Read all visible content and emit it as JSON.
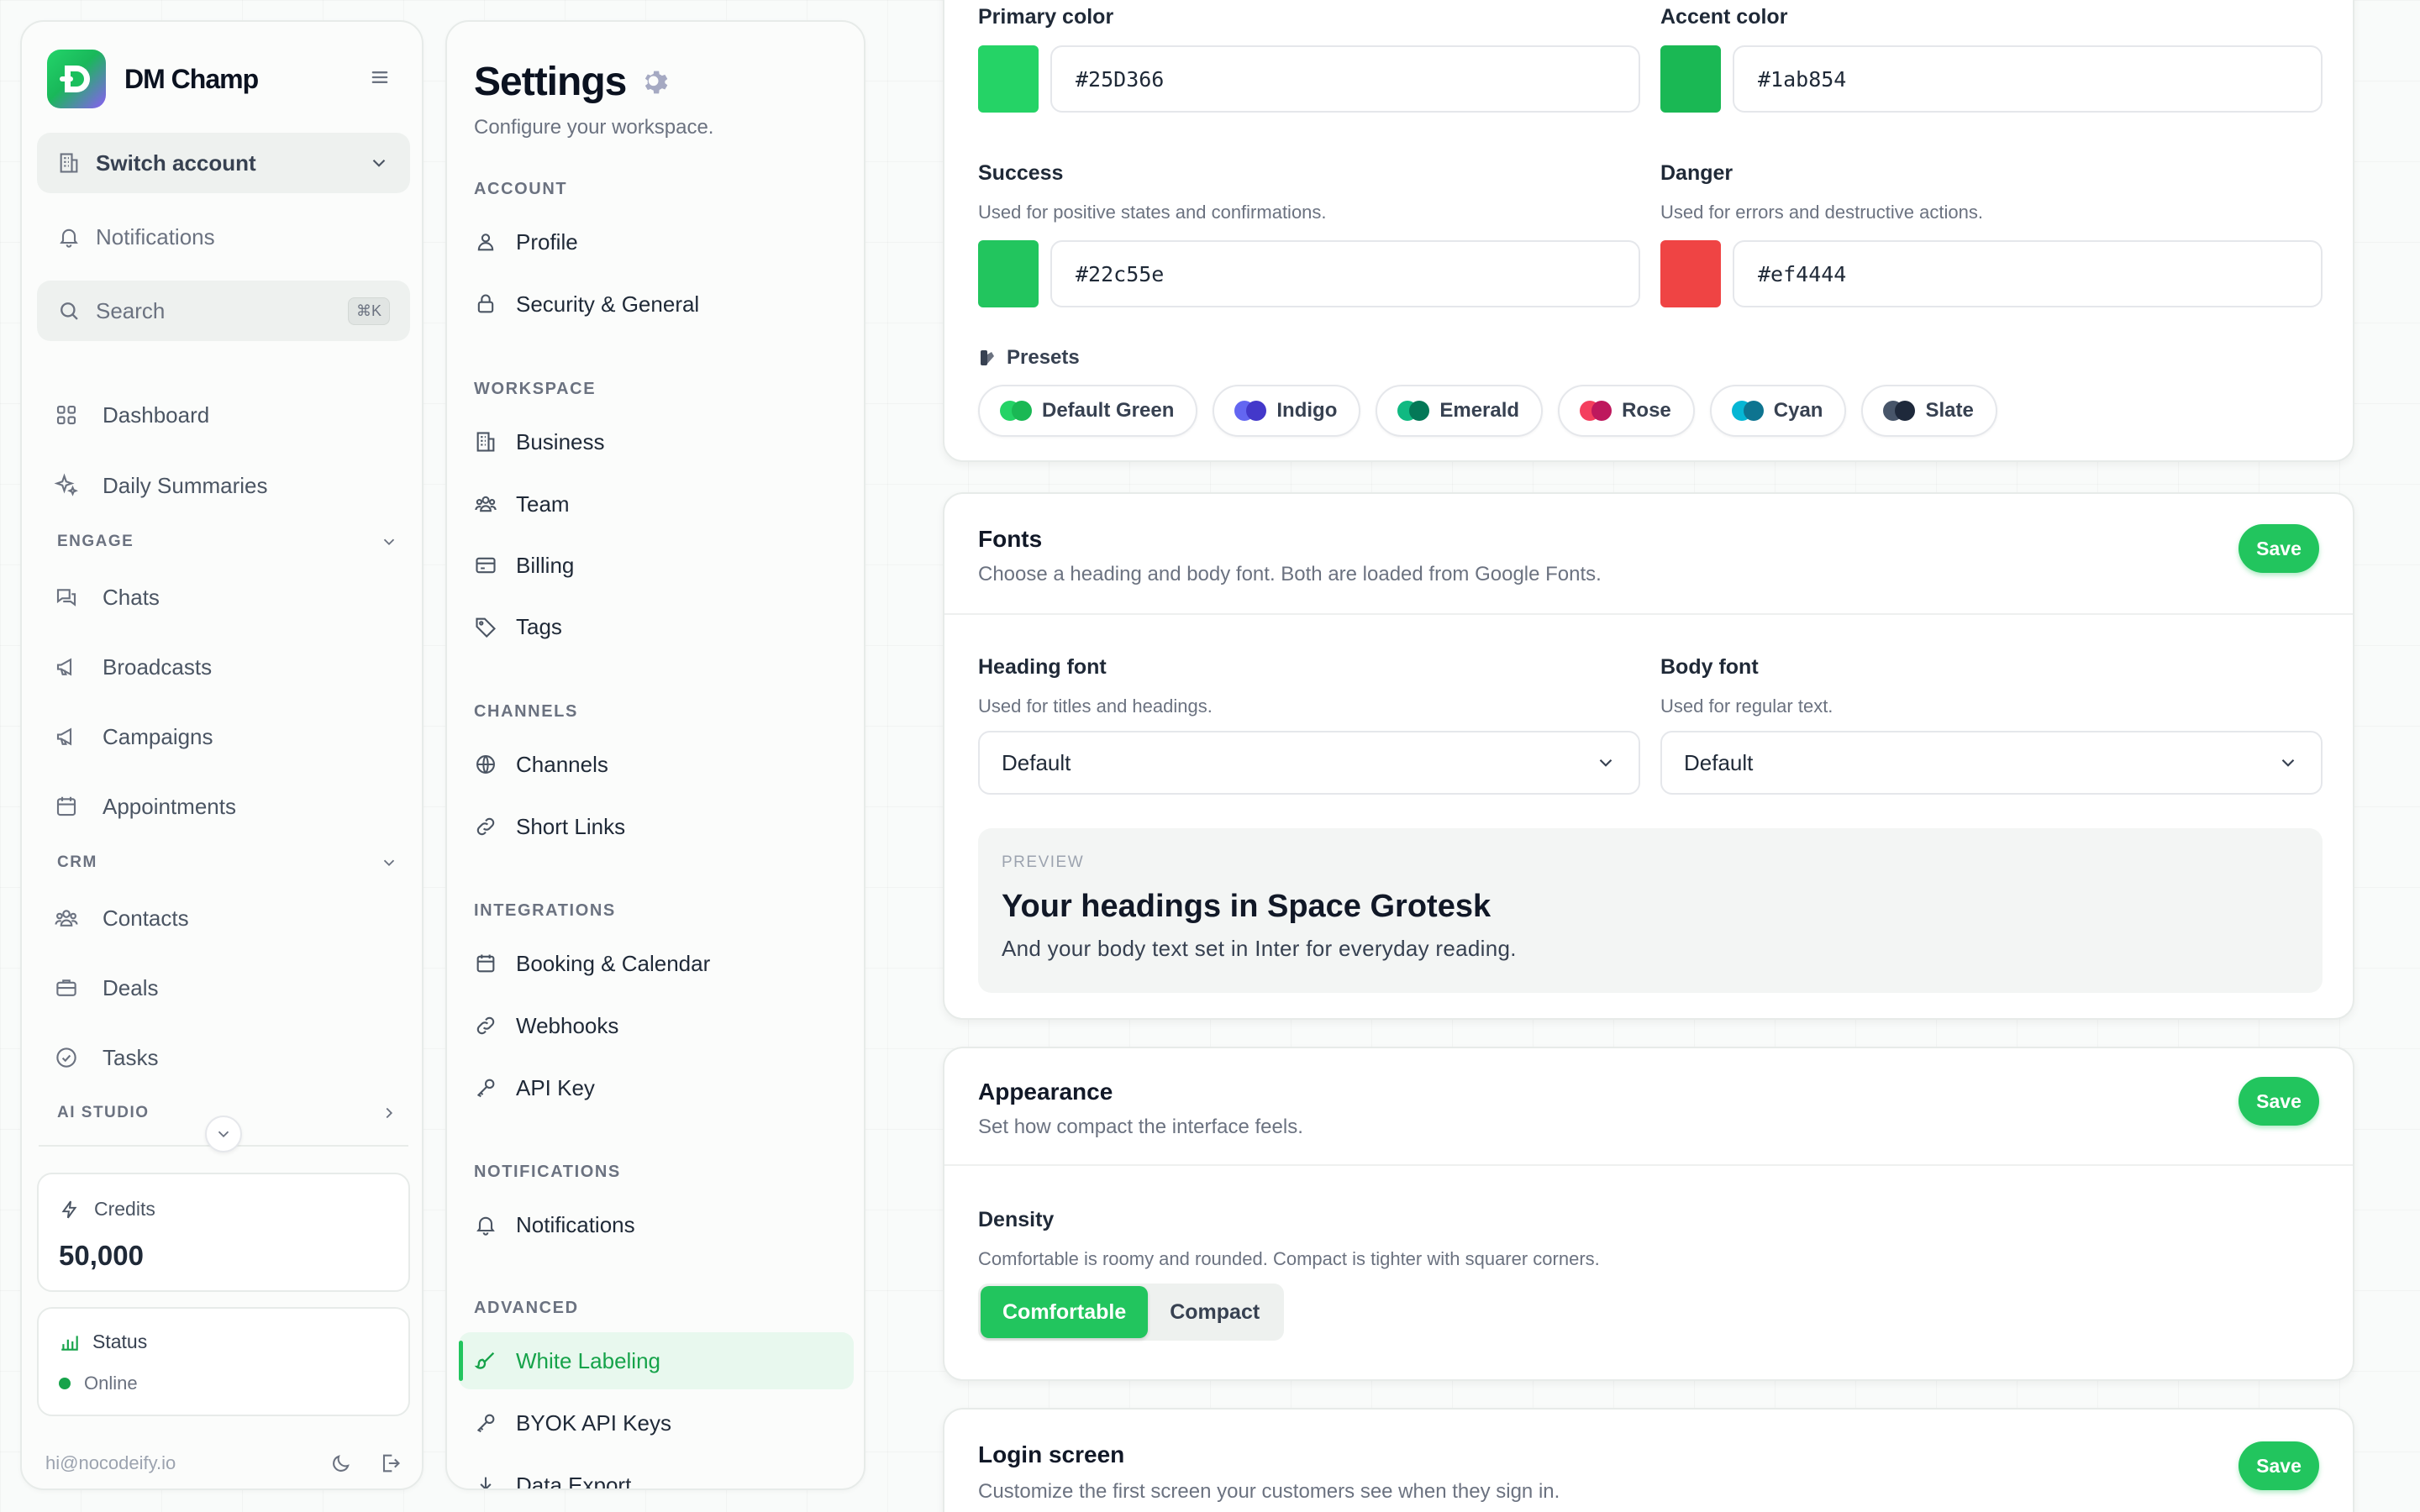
{
  "sidebar": {
    "brand": "DM Champ",
    "switch_account": "Switch account",
    "notifications": "Notifications",
    "search_placeholder": "Search",
    "search_shortcut": "⌘K",
    "nav": [
      {
        "label": "Dashboard",
        "icon": "dashboard-grid-icon"
      },
      {
        "label": "Daily Summaries",
        "icon": "sparkles-icon"
      }
    ],
    "sections": [
      {
        "label": "ENGAGE",
        "items": [
          {
            "label": "Chats",
            "icon": "chat-icon"
          },
          {
            "label": "Broadcasts",
            "icon": "megaphone-icon"
          },
          {
            "label": "Campaigns",
            "icon": "megaphone-icon"
          },
          {
            "label": "Appointments",
            "icon": "calendar-icon"
          }
        ]
      },
      {
        "label": "CRM",
        "items": [
          {
            "label": "Contacts",
            "icon": "users-icon"
          },
          {
            "label": "Deals",
            "icon": "briefcase-icon"
          },
          {
            "label": "Tasks",
            "icon": "check-circle-icon"
          }
        ]
      },
      {
        "label": "AI STUDIO",
        "items": []
      }
    ],
    "credits": {
      "label": "Credits",
      "value": "50,000"
    },
    "status": {
      "label": "Status",
      "value": "Online",
      "color": "#16a34a"
    },
    "user_email": "hi@nocodeify.io"
  },
  "settings_nav": {
    "title": "Settings",
    "subtitle": "Configure your workspace.",
    "groups": [
      {
        "label": "ACCOUNT",
        "items": [
          "Profile",
          "Security & General"
        ]
      },
      {
        "label": "WORKSPACE",
        "items": [
          "Business",
          "Team",
          "Billing",
          "Tags"
        ]
      },
      {
        "label": "CHANNELS",
        "items": [
          "Channels",
          "Short Links"
        ]
      },
      {
        "label": "INTEGRATIONS",
        "items": [
          "Booking & Calendar",
          "Webhooks",
          "API Key"
        ]
      },
      {
        "label": "NOTIFICATIONS",
        "items": [
          "Notifications"
        ]
      },
      {
        "label": "ADVANCED",
        "items": [
          "White Labeling",
          "BYOK API Keys",
          "Data Export"
        ]
      }
    ],
    "active_item": "White Labeling"
  },
  "colors": {
    "primary": {
      "label": "Primary color",
      "value": "#25D366",
      "swatch": "#25D366"
    },
    "accent": {
      "label": "Accent color",
      "value": "#1ab854",
      "swatch": "#1ab854"
    },
    "success": {
      "label": "Success",
      "help": "Used for positive states and confirmations.",
      "value": "#22c55e",
      "swatch": "#22c55e"
    },
    "danger": {
      "label": "Danger",
      "help": "Used for errors and destructive actions.",
      "value": "#ef4444",
      "swatch": "#ef4444"
    },
    "presets_label": "Presets",
    "presets": [
      {
        "name": "Default Green",
        "c1": "#25D366",
        "c2": "#1ab854"
      },
      {
        "name": "Indigo",
        "c1": "#6366f1",
        "c2": "#4338ca"
      },
      {
        "name": "Emerald",
        "c1": "#10b981",
        "c2": "#047857"
      },
      {
        "name": "Rose",
        "c1": "#f43f5e",
        "c2": "#be185d"
      },
      {
        "name": "Cyan",
        "c1": "#06b6d4",
        "c2": "#0e7490"
      },
      {
        "name": "Slate",
        "c1": "#475569",
        "c2": "#1e293b"
      }
    ]
  },
  "fonts": {
    "title": "Fonts",
    "subtitle": "Choose a heading and body font. Both are loaded from Google Fonts.",
    "save": "Save",
    "heading": {
      "label": "Heading font",
      "help": "Used for titles and headings.",
      "value": "Default"
    },
    "body": {
      "label": "Body font",
      "help": "Used for regular text.",
      "value": "Default"
    },
    "preview": {
      "label": "PREVIEW",
      "heading": "Your headings in Space Grotesk",
      "body": "And your body text set in Inter for everyday reading."
    }
  },
  "appearance": {
    "title": "Appearance",
    "subtitle": "Set how compact the interface feels.",
    "save": "Save",
    "density_label": "Density",
    "density_help": "Comfortable is roomy and rounded. Compact is tighter with squarer corners.",
    "options": [
      "Comfortable",
      "Compact"
    ],
    "selected": "Comfortable"
  },
  "login": {
    "title": "Login screen",
    "subtitle": "Customize the first screen your customers see when they sign in.",
    "save": "Save"
  },
  "theme": {
    "accent": "#22c55e"
  }
}
